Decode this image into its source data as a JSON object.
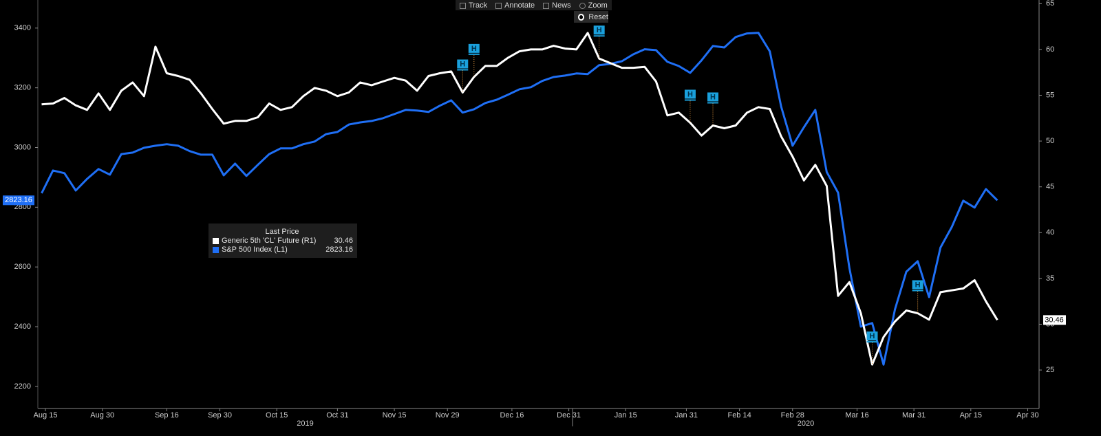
{
  "chart_data": {
    "type": "line",
    "x": [
      "2019-08-14",
      "2019-08-17",
      "2019-08-20",
      "2019-08-23",
      "2019-08-26",
      "2019-08-29",
      "2019-09-01",
      "2019-09-04",
      "2019-09-07",
      "2019-09-10",
      "2019-09-13",
      "2019-09-16",
      "2019-09-19",
      "2019-09-22",
      "2019-09-25",
      "2019-09-28",
      "2019-10-01",
      "2019-10-04",
      "2019-10-07",
      "2019-10-10",
      "2019-10-13",
      "2019-10-16",
      "2019-10-19",
      "2019-10-22",
      "2019-10-25",
      "2019-10-28",
      "2019-10-31",
      "2019-11-03",
      "2019-11-06",
      "2019-11-09",
      "2019-11-12",
      "2019-11-15",
      "2019-11-18",
      "2019-11-21",
      "2019-11-24",
      "2019-11-27",
      "2019-11-30",
      "2019-12-03",
      "2019-12-06",
      "2019-12-09",
      "2019-12-12",
      "2019-12-15",
      "2019-12-18",
      "2019-12-21",
      "2019-12-24",
      "2019-12-27",
      "2019-12-30",
      "2020-01-02",
      "2020-01-05",
      "2020-01-08",
      "2020-01-11",
      "2020-01-14",
      "2020-01-17",
      "2020-01-20",
      "2020-01-23",
      "2020-01-26",
      "2020-01-29",
      "2020-02-01",
      "2020-02-04",
      "2020-02-07",
      "2020-02-10",
      "2020-02-13",
      "2020-02-16",
      "2020-02-19",
      "2020-02-22",
      "2020-02-25",
      "2020-02-28",
      "2020-03-02",
      "2020-03-05",
      "2020-03-08",
      "2020-03-11",
      "2020-03-14",
      "2020-03-17",
      "2020-03-20",
      "2020-03-23",
      "2020-03-26",
      "2020-03-29",
      "2020-04-01",
      "2020-04-04",
      "2020-04-07",
      "2020-04-10",
      "2020-04-13",
      "2020-04-16",
      "2020-04-19",
      "2020-04-22"
    ],
    "series": [
      {
        "name": "Generic 5th 'CL' Future (R1)",
        "color": "#ffffff",
        "axis": "y2",
        "values": [
          54.0,
          54.1,
          54.7,
          53.9,
          53.4,
          55.2,
          53.4,
          55.5,
          56.4,
          54.9,
          60.3,
          57.4,
          57.1,
          56.7,
          55.2,
          53.5,
          51.9,
          52.2,
          52.2,
          52.6,
          54.1,
          53.4,
          53.7,
          54.9,
          55.8,
          55.5,
          54.9,
          55.3,
          56.4,
          56.1,
          56.5,
          56.9,
          56.6,
          55.5,
          57.1,
          57.4,
          57.6,
          55.3,
          57.0,
          58.2,
          58.2,
          59.1,
          59.8,
          60.0,
          60.0,
          60.4,
          60.1,
          60.0,
          61.8,
          59.0,
          58.5,
          58.0,
          58.0,
          58.1,
          56.5,
          52.8,
          53.1,
          52.0,
          50.6,
          51.7,
          51.4,
          51.7,
          53.1,
          53.7,
          53.5,
          50.5,
          48.3,
          45.7,
          47.4,
          45.1,
          33.1,
          34.6,
          31.2,
          25.6,
          28.6,
          30.3,
          31.5,
          31.2,
          30.5,
          33.5,
          33.7,
          33.9,
          34.8,
          32.5,
          30.46
        ]
      },
      {
        "name": "S&P 500 Index (L1)",
        "color": "#1f6ff5",
        "values": [
          2847,
          2923,
          2914,
          2856,
          2895,
          2928,
          2909,
          2978,
          2983,
          2999,
          3006,
          3011,
          3006,
          2988,
          2976,
          2976,
          2907,
          2946,
          2905,
          2942,
          2978,
          2997,
          2997,
          3011,
          3020,
          3045,
          3052,
          3077,
          3084,
          3089,
          3098,
          3112,
          3126,
          3124,
          3119,
          3140,
          3158,
          3117,
          3128,
          3149,
          3160,
          3177,
          3195,
          3202,
          3223,
          3236,
          3241,
          3248,
          3246,
          3276,
          3280,
          3289,
          3312,
          3329,
          3326,
          3287,
          3273,
          3250,
          3292,
          3340,
          3335,
          3370,
          3382,
          3384,
          3322,
          3137,
          3006,
          3068,
          3126,
          2918,
          2849,
          2596,
          2400,
          2412,
          2273,
          2458,
          2584,
          2619,
          2499,
          2665,
          2734,
          2822,
          2799,
          2861,
          2823.16
        ]
      }
    ],
    "xlim": [
      "2019-08-13",
      "2020-05-03"
    ],
    "xticks": [
      {
        "value": "2019-08-15",
        "label": "Aug 15"
      },
      {
        "value": "2019-08-30",
        "label": "Aug 30"
      },
      {
        "value": "2019-09-16",
        "label": "Sep 16"
      },
      {
        "value": "2019-09-30",
        "label": "Sep 30"
      },
      {
        "value": "2019-10-15",
        "label": "Oct 15"
      },
      {
        "value": "2019-10-31",
        "label": "Oct 31"
      },
      {
        "value": "2019-11-15",
        "label": "Nov 15"
      },
      {
        "value": "2019-11-29",
        "label": "Nov 29"
      },
      {
        "value": "2019-12-16",
        "label": "Dec 16"
      },
      {
        "value": "2019-12-31",
        "label": "Dec 31"
      },
      {
        "value": "2020-01-15",
        "label": "Jan 15"
      },
      {
        "value": "2020-01-31",
        "label": "Jan 31"
      },
      {
        "value": "2020-02-14",
        "label": "Feb 14"
      },
      {
        "value": "2020-02-28",
        "label": "Feb 28"
      },
      {
        "value": "2020-03-16",
        "label": "Mar 16"
      },
      {
        "value": "2020-03-31",
        "label": "Mar 31"
      },
      {
        "value": "2020-04-15",
        "label": "Apr 15"
      },
      {
        "value": "2020-04-30",
        "label": "Apr 30"
      }
    ],
    "year_labels": [
      "2019",
      "2020"
    ],
    "ylim": [
      2126,
      3494
    ],
    "yticks": [
      2200,
      2400,
      2600,
      2800,
      3000,
      3200,
      3400
    ],
    "y2lim": [
      20.8,
      65.4
    ],
    "y2ticks": [
      25,
      30,
      35,
      40,
      45,
      50,
      55,
      60,
      65
    ],
    "legend_title": "Last Price",
    "annotations": [
      {
        "x": "2019-12-03",
        "label": "H"
      },
      {
        "x": "2019-12-06",
        "label": "H"
      },
      {
        "x": "2020-01-08",
        "label": "H"
      },
      {
        "x": "2020-02-01",
        "label": "H"
      },
      {
        "x": "2020-02-07",
        "label": "H"
      },
      {
        "x": "2020-03-20",
        "label": "H"
      },
      {
        "x": "2020-04-01",
        "label": "H"
      }
    ],
    "grid": false
  },
  "toolbar": {
    "buttons": [
      "Track",
      "Annotate",
      "News",
      "Zoom"
    ],
    "reset": "Reset"
  }
}
